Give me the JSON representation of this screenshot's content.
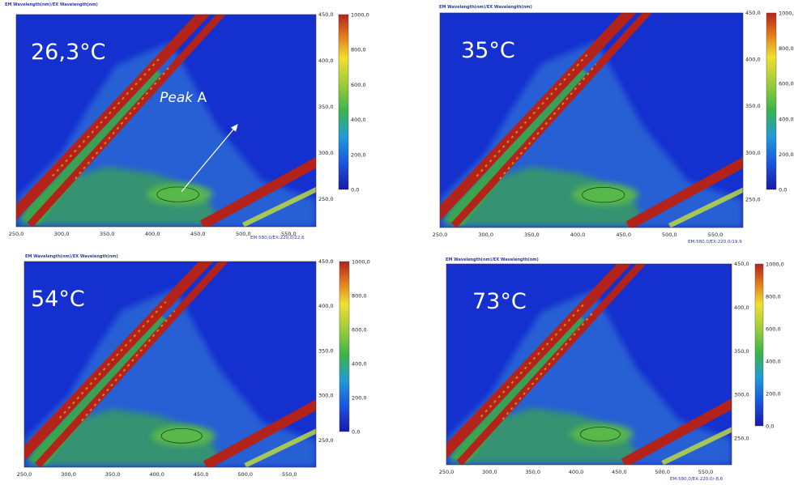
{
  "chart_data": [
    {
      "type": "heatmap",
      "title": "26,3°C",
      "header": "EM Wavelength(nm)/EX Wavelength(nm)",
      "footer": "EM:580,0/EX:220,0/22,6",
      "x_ticks": [
        "250,0",
        "300,0",
        "350,0",
        "400,0",
        "450,0",
        "500,0",
        "550,0"
      ],
      "y_ticks": [
        "450,0",
        "400,0",
        "350,0",
        "300,0",
        "250,0"
      ],
      "colorbar_ticks": [
        "1000,0",
        "800,0",
        "600,0",
        "400,0",
        "200,0",
        "0,0"
      ],
      "xlim": [
        250,
        580
      ],
      "ylim": [
        220,
        450
      ],
      "annotation": {
        "text_italic": "Peak",
        "text": " A",
        "peak_em": 430,
        "peak_ex": 260
      }
    },
    {
      "type": "heatmap",
      "title": "35°C",
      "header": "EM Wavelength(nm)/EX Wavelength(nm)",
      "footer": "EM:580,0/EX:220,0/19.9",
      "x_ticks": [
        "250,0",
        "300,0",
        "350,0",
        "400,0",
        "450,0",
        "500,0",
        "550,0"
      ],
      "y_ticks": [
        "450,0",
        "400,0",
        "350,0",
        "300,0",
        "250,0"
      ],
      "colorbar_ticks": [
        "1000,0",
        "800,0",
        "600,0",
        "400,0",
        "200,0",
        "0,0"
      ],
      "xlim": [
        250,
        580
      ],
      "ylim": [
        220,
        450
      ]
    },
    {
      "type": "heatmap",
      "title": "54°C",
      "header": "EM Wavelength(nm)/EX Wavelength(nm)",
      "footer": "",
      "x_ticks": [
        "250,0",
        "300,0",
        "350,0",
        "400,0",
        "450,0",
        "500,0",
        "550,0"
      ],
      "y_ticks": [
        "450,0",
        "400,0",
        "350,0",
        "300,0",
        "250,0"
      ],
      "colorbar_ticks": [
        "1000,0",
        "800,0",
        "600,0",
        "400,0",
        "200,0",
        "0,0"
      ],
      "xlim": [
        250,
        580
      ],
      "ylim": [
        220,
        450
      ]
    },
    {
      "type": "heatmap",
      "title": "73°C",
      "header": "EM Wavelength(nm)/EX Wavelength(nm)",
      "footer": "EM:580,0/EX:220,0/-8,6",
      "x_ticks": [
        "250,0",
        "300,0",
        "350,0",
        "400,0",
        "450,0",
        "500,0",
        "550,0"
      ],
      "y_ticks": [
        "450,0",
        "400,0",
        "350,0",
        "300,0",
        "250,0"
      ],
      "colorbar_ticks": [
        "1000,0",
        "800,0",
        "600,0",
        "400,0",
        "200,0",
        "0,0"
      ],
      "xlim": [
        250,
        580
      ],
      "ylim": [
        220,
        450
      ]
    }
  ],
  "colors": {
    "background": "#1430cf",
    "low": "#2f6fd6",
    "mid": "#3aa84a",
    "high": "#c7e03a",
    "peak": "#b3231a",
    "axis_text": "#2b3bb0"
  }
}
